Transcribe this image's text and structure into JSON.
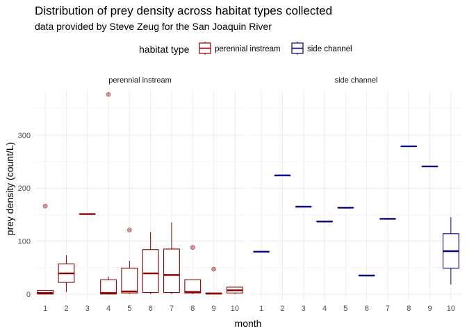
{
  "chart_data": {
    "type": "boxplot",
    "title": "Distribution of prey density across habitat types collected",
    "subtitle": "data provided by Steve Zeug for the San Joaquin River",
    "xlabel": "month",
    "ylabel": "prey density (count/L)",
    "ylim": [
      -12,
      385
    ],
    "yticks": [
      0,
      100,
      200,
      300
    ],
    "categories": [
      "1",
      "2",
      "3",
      "4",
      "5",
      "6",
      "7",
      "8",
      "9",
      "10"
    ],
    "grid": true,
    "legend": {
      "title": "habitat type",
      "position": "top",
      "entries": [
        {
          "label": "perennial instream",
          "color": "#8B0000"
        },
        {
          "label": "side channel",
          "color": "#000080"
        }
      ]
    },
    "facets": [
      {
        "name": "perennial instream",
        "color": "#8B0000",
        "boxes": [
          {
            "x": "1",
            "q1": 0,
            "median": 2,
            "q3": 7,
            "low": 0,
            "high": 7,
            "outliers": [
              166
            ]
          },
          {
            "x": "2",
            "q1": 22,
            "median": 39,
            "q3": 57,
            "low": 4,
            "high": 73,
            "outliers": []
          },
          {
            "x": "3",
            "q1": 151,
            "median": 151,
            "q3": 151,
            "low": 151,
            "high": 151,
            "outliers": []
          },
          {
            "x": "4",
            "q1": 0,
            "median": 2,
            "q3": 27,
            "low": 0,
            "high": 33,
            "outliers": [
              377
            ]
          },
          {
            "x": "5",
            "q1": 2,
            "median": 5,
            "q3": 49,
            "low": 0,
            "high": 63,
            "outliers": [
              121
            ]
          },
          {
            "x": "6",
            "q1": 3,
            "median": 39,
            "q3": 84,
            "low": 0,
            "high": 117,
            "outliers": []
          },
          {
            "x": "7",
            "q1": 3,
            "median": 36,
            "q3": 85,
            "low": 0,
            "high": 135,
            "outliers": []
          },
          {
            "x": "8",
            "q1": 2,
            "median": 4,
            "q3": 27,
            "low": 0,
            "high": 27,
            "outliers": [
              88
            ]
          },
          {
            "x": "9",
            "q1": 0,
            "median": 1,
            "q3": 2,
            "low": 0,
            "high": 3,
            "outliers": [
              47
            ]
          },
          {
            "x": "10",
            "q1": 2,
            "median": 7,
            "q3": 13,
            "low": 0,
            "high": 13,
            "outliers": []
          }
        ]
      },
      {
        "name": "side channel",
        "color": "#000080",
        "boxes": [
          {
            "x": "1",
            "q1": 80,
            "median": 80,
            "q3": 80,
            "low": 80,
            "high": 80,
            "outliers": []
          },
          {
            "x": "2",
            "q1": 224,
            "median": 224,
            "q3": 224,
            "low": 224,
            "high": 224,
            "outliers": []
          },
          {
            "x": "3",
            "q1": 165,
            "median": 165,
            "q3": 165,
            "low": 165,
            "high": 165,
            "outliers": []
          },
          {
            "x": "4",
            "q1": 137,
            "median": 137,
            "q3": 137,
            "low": 137,
            "high": 137,
            "outliers": []
          },
          {
            "x": "5",
            "q1": 163,
            "median": 163,
            "q3": 163,
            "low": 163,
            "high": 163,
            "outliers": []
          },
          {
            "x": "6",
            "q1": 35,
            "median": 35,
            "q3": 35,
            "low": 35,
            "high": 35,
            "outliers": []
          },
          {
            "x": "7",
            "q1": 142,
            "median": 142,
            "q3": 142,
            "low": 142,
            "high": 142,
            "outliers": []
          },
          {
            "x": "8",
            "q1": 279,
            "median": 279,
            "q3": 279,
            "low": 279,
            "high": 279,
            "outliers": []
          },
          {
            "x": "9",
            "q1": 241,
            "median": 241,
            "q3": 241,
            "low": 241,
            "high": 241,
            "outliers": []
          },
          {
            "x": "10",
            "q1": 49,
            "median": 81,
            "q3": 114,
            "low": 18,
            "high": 145,
            "outliers": []
          }
        ]
      }
    ]
  }
}
